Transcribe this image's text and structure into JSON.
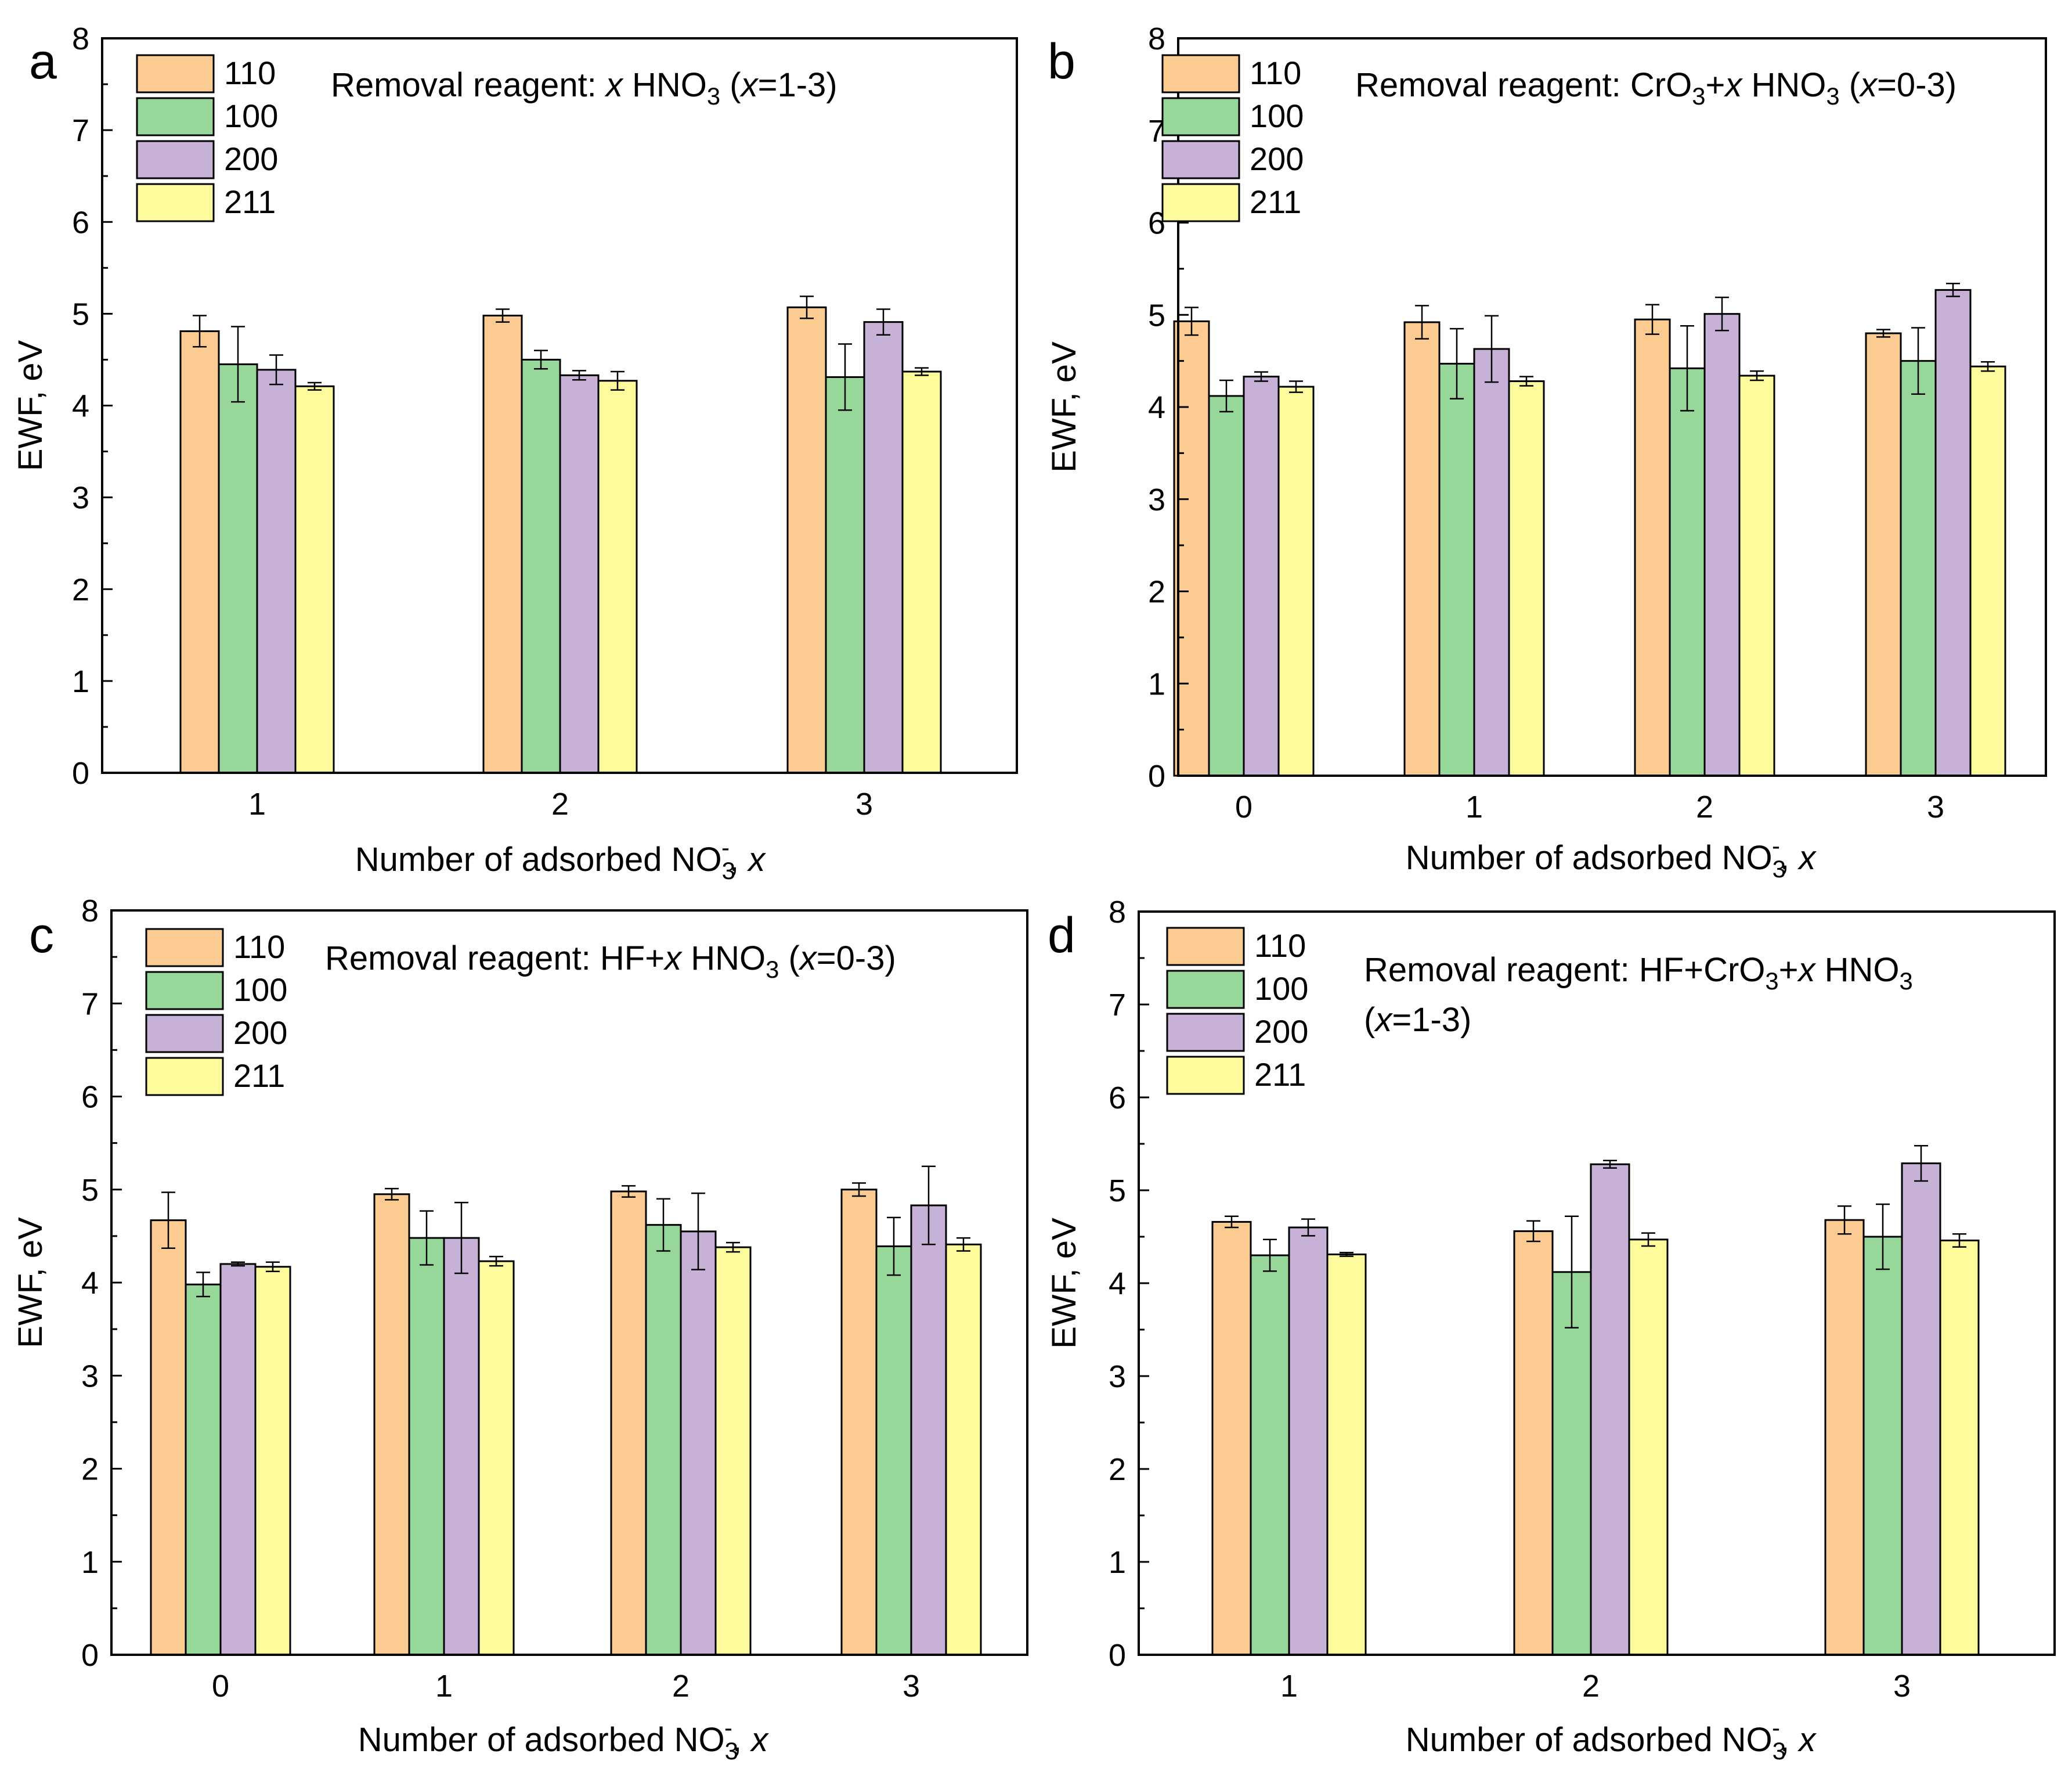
{
  "figure": {
    "legend_colors": {
      "110": "#FCCB92",
      "100": "#97D89A",
      "200": "#C7B1D7",
      "211": "#FDFB9B"
    }
  },
  "chart_data": [
    {
      "type": "bar",
      "panel_label": "a",
      "title": "",
      "annotation": {
        "text": "Removal reagent: x HNO3 (x=1-3)",
        "parts": [
          {
            "t": "Removal reagent: "
          },
          {
            "t": "x",
            "i": true
          },
          {
            "t": " HNO"
          },
          {
            "t": "3",
            "sub": true
          },
          {
            "t": " ("
          },
          {
            "t": "x",
            "i": true
          },
          {
            "t": "=1-3)"
          }
        ]
      },
      "xlabel": "Number of adsorbed NO3-, x",
      "ylabel": "EWF, eV",
      "ylim": [
        0,
        8
      ],
      "yticks": [
        "0",
        "1",
        "2",
        "3",
        "4",
        "5",
        "6",
        "7",
        "8"
      ],
      "categories": [
        "1",
        "2",
        "3"
      ],
      "series": [
        {
          "name": "110",
          "color": "#FCCB92",
          "values": [
            4.81,
            4.98,
            5.07
          ],
          "errors": [
            0.17,
            0.07,
            0.12
          ]
        },
        {
          "name": "100",
          "color": "#97D89A",
          "values": [
            4.45,
            4.5,
            4.31
          ],
          "errors": [
            0.41,
            0.1,
            0.36
          ]
        },
        {
          "name": "200",
          "color": "#C7B1D7",
          "values": [
            4.39,
            4.33,
            4.91
          ],
          "errors": [
            0.16,
            0.05,
            0.14
          ]
        },
        {
          "name": "211",
          "color": "#FDFB9B",
          "values": [
            4.21,
            4.27,
            4.37
          ],
          "errors": [
            0.04,
            0.1,
            0.04
          ]
        }
      ]
    },
    {
      "type": "bar",
      "panel_label": "b",
      "title": "",
      "annotation": {
        "text": "Removal reagent: CrO3+x HNO3 (x=0-3)",
        "parts": [
          {
            "t": "Removal reagent: CrO"
          },
          {
            "t": "3",
            "sub": true
          },
          {
            "t": "+"
          },
          {
            "t": "x",
            "i": true
          },
          {
            "t": " HNO"
          },
          {
            "t": "3",
            "sub": true
          },
          {
            "t": " ("
          },
          {
            "t": "x",
            "i": true
          },
          {
            "t": "=0-3)"
          }
        ]
      },
      "xlabel": "Number of adsorbed NO3-, x",
      "ylabel": "EWF, eV",
      "ylim": [
        0,
        8
      ],
      "yticks": [
        "0",
        "1",
        "2",
        "3",
        "4",
        "5",
        "6",
        "7",
        "8"
      ],
      "categories": [
        "0",
        "1",
        "2",
        "3"
      ],
      "series": [
        {
          "name": "110",
          "color": "#FCCB92",
          "values": [
            4.93,
            4.92,
            4.95,
            4.8
          ],
          "errors": [
            0.15,
            0.18,
            0.16,
            0.04
          ]
        },
        {
          "name": "100",
          "color": "#97D89A",
          "values": [
            4.12,
            4.47,
            4.42,
            4.5
          ],
          "errors": [
            0.17,
            0.38,
            0.46,
            0.36
          ]
        },
        {
          "name": "200",
          "color": "#C7B1D7",
          "values": [
            4.33,
            4.63,
            5.01,
            5.27
          ],
          "errors": [
            0.05,
            0.36,
            0.18,
            0.07
          ]
        },
        {
          "name": "211",
          "color": "#FDFB9B",
          "values": [
            4.22,
            4.28,
            4.34,
            4.44
          ],
          "errors": [
            0.06,
            0.05,
            0.05,
            0.05
          ]
        }
      ]
    },
    {
      "type": "bar",
      "panel_label": "c",
      "title": "",
      "annotation": {
        "text": "Removal reagent: HF+x HNO3 (x=0-3)",
        "parts": [
          {
            "t": "Removal reagent: HF+"
          },
          {
            "t": "x",
            "i": true
          },
          {
            "t": " HNO"
          },
          {
            "t": "3",
            "sub": true
          },
          {
            "t": " ("
          },
          {
            "t": "x",
            "i": true
          },
          {
            "t": "=0-3)"
          }
        ]
      },
      "xlabel": "Number of adsorbed NO3-, x",
      "ylabel": "EWF, eV",
      "ylim": [
        0,
        8
      ],
      "yticks": [
        "0",
        "1",
        "2",
        "3",
        "4",
        "5",
        "6",
        "7",
        "8"
      ],
      "categories": [
        "0",
        "1",
        "2",
        "3"
      ],
      "series": [
        {
          "name": "110",
          "color": "#FCCB92",
          "values": [
            4.67,
            4.95,
            4.98,
            5.0
          ],
          "errors": [
            0.3,
            0.06,
            0.06,
            0.07
          ]
        },
        {
          "name": "100",
          "color": "#97D89A",
          "values": [
            3.98,
            4.48,
            4.62,
            4.39
          ],
          "errors": [
            0.13,
            0.29,
            0.28,
            0.31
          ]
        },
        {
          "name": "200",
          "color": "#C7B1D7",
          "values": [
            4.2,
            4.48,
            4.55,
            4.83
          ],
          "errors": [
            0.02,
            0.38,
            0.41,
            0.42
          ]
        },
        {
          "name": "211",
          "color": "#FDFB9B",
          "values": [
            4.17,
            4.23,
            4.38,
            4.41
          ],
          "errors": [
            0.05,
            0.05,
            0.05,
            0.07
          ]
        }
      ]
    },
    {
      "type": "bar",
      "panel_label": "d",
      "title": "",
      "annotation": {
        "text": "Removal reagent: HF+CrO3+x HNO3 (x=1-3)",
        "parts": [
          {
            "t": "Removal reagent: HF+CrO"
          },
          {
            "t": "3",
            "sub": true
          },
          {
            "t": "+"
          },
          {
            "t": "x",
            "i": true
          },
          {
            "t": " HNO"
          },
          {
            "t": "3",
            "sub": true
          }
        ],
        "line2": [
          {
            "t": "("
          },
          {
            "t": "x",
            "i": true
          },
          {
            "t": "=1-3)"
          }
        ]
      },
      "xlabel": "Number of adsorbed NO3-, x",
      "ylabel": "EWF, eV",
      "ylim": [
        0,
        8
      ],
      "yticks": [
        "0",
        "1",
        "2",
        "3",
        "4",
        "5",
        "6",
        "7",
        "8"
      ],
      "categories": [
        "1",
        "2",
        "3"
      ],
      "series": [
        {
          "name": "110",
          "color": "#FCCB92",
          "values": [
            4.66,
            4.56,
            4.68
          ],
          "errors": [
            0.06,
            0.11,
            0.15
          ]
        },
        {
          "name": "100",
          "color": "#97D89A",
          "values": [
            4.3,
            4.12,
            4.5
          ],
          "errors": [
            0.17,
            0.6,
            0.35
          ]
        },
        {
          "name": "200",
          "color": "#C7B1D7",
          "values": [
            4.6,
            5.28,
            5.29
          ],
          "errors": [
            0.09,
            0.04,
            0.19
          ]
        },
        {
          "name": "211",
          "color": "#FDFB9B",
          "values": [
            4.31,
            4.47,
            4.46
          ],
          "errors": [
            0.02,
            0.07,
            0.07
          ]
        }
      ]
    }
  ]
}
